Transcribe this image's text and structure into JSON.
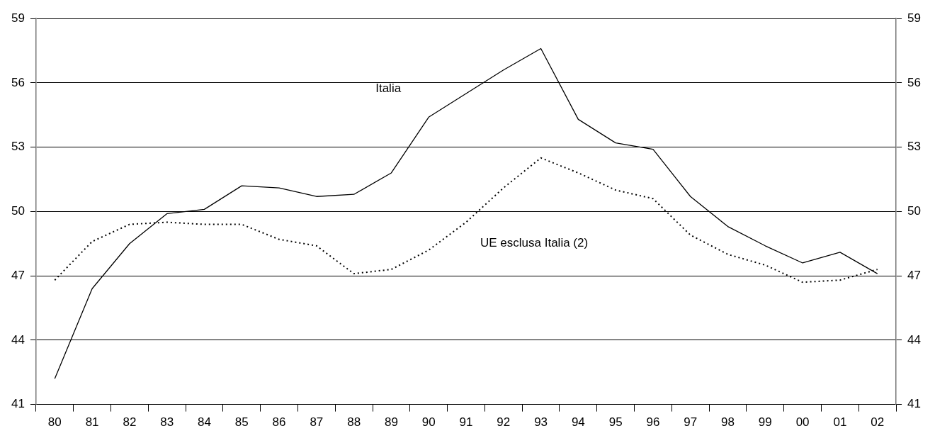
{
  "chart_data": {
    "type": "line",
    "categories": [
      "80",
      "81",
      "82",
      "83",
      "84",
      "85",
      "86",
      "87",
      "88",
      "89",
      "90",
      "91",
      "92",
      "93",
      "94",
      "95",
      "96",
      "97",
      "98",
      "99",
      "00",
      "01",
      "02"
    ],
    "series": [
      {
        "name": "Italia",
        "color": "#000000",
        "line_style": "solid",
        "values": [
          42.2,
          46.4,
          48.5,
          49.9,
          50.1,
          51.2,
          51.1,
          50.7,
          50.8,
          51.8,
          54.4,
          55.5,
          56.6,
          57.6,
          54.3,
          53.2,
          52.9,
          50.7,
          49.3,
          48.4,
          47.6,
          48.1,
          47.1
        ]
      },
      {
        "name": "UE esclusa Italia (2)",
        "color": "#000000",
        "line_style": "dotted",
        "values": [
          46.8,
          48.6,
          49.4,
          49.5,
          49.4,
          49.4,
          48.7,
          48.4,
          47.1,
          47.3,
          48.2,
          49.5,
          51.1,
          52.5,
          51.8,
          51.0,
          50.6,
          48.9,
          48.0,
          47.5,
          46.7,
          46.8,
          47.3
        ]
      }
    ],
    "ylim": [
      41,
      59
    ],
    "yticks": [
      41,
      44,
      47,
      50,
      53,
      56,
      59
    ],
    "y2lim": [
      41,
      59
    ],
    "y2ticks": [
      41,
      44,
      47,
      50,
      53,
      56,
      59
    ],
    "grid": "y",
    "legend": false,
    "marker": "none"
  }
}
